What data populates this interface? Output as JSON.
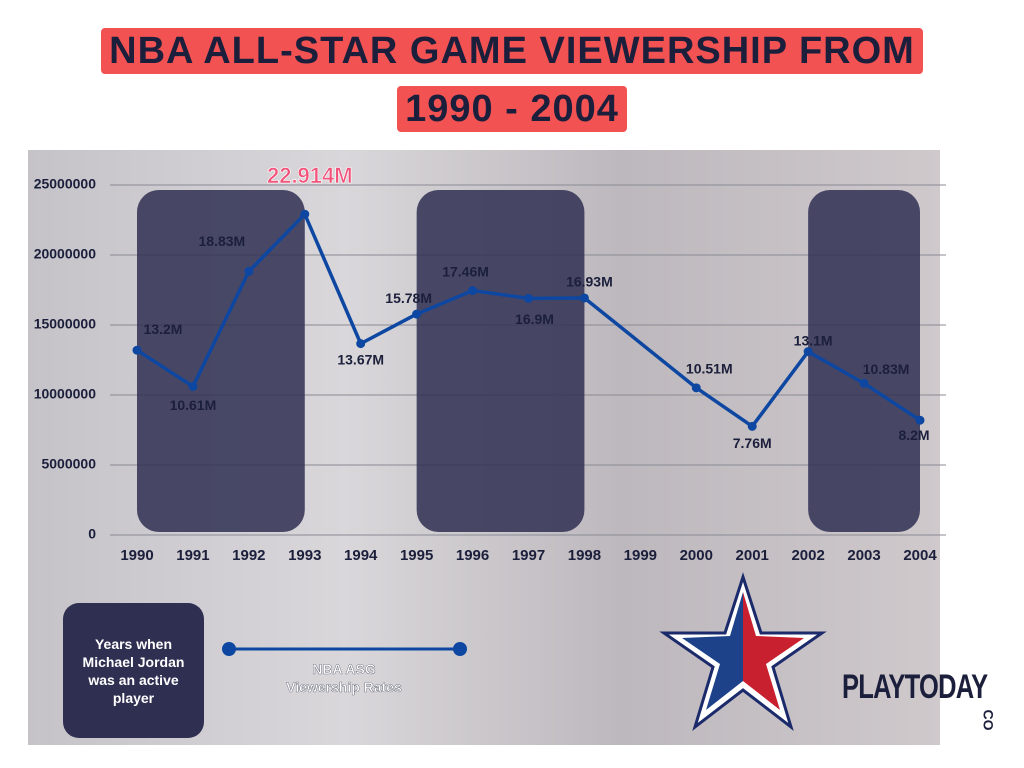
{
  "chart_data": {
    "type": "line",
    "title": "NBA ALL-STAR GAME VIEWERSHIP FROM 1990 - 2004",
    "x": [
      1990,
      1991,
      1992,
      1993,
      1994,
      1995,
      1996,
      1997,
      1998,
      2000,
      2001,
      2002,
      2003,
      2004
    ],
    "series": [
      {
        "name": "NBA ASG Viewership Rates",
        "color": "#0d47a1",
        "values": [
          13200000,
          10610000,
          18830000,
          22914000,
          13670000,
          15780000,
          17460000,
          16900000,
          16930000,
          10510000,
          7760000,
          13100000,
          10830000,
          8200000
        ],
        "value_labels": [
          "13.2M",
          "10.61M",
          "18.83M",
          "22.914M",
          "13.67M",
          "15.78M",
          "17.46M",
          "16.9M",
          "16.93M",
          "10.51M",
          "7.76M",
          "13.1M",
          "10.83M",
          "8.2M"
        ]
      }
    ],
    "xlim": [
      1990,
      2004
    ],
    "xticks": [
      1990,
      1991,
      1992,
      1993,
      1994,
      1995,
      1996,
      1997,
      1998,
      1999,
      2000,
      2001,
      2002,
      2003,
      2004
    ],
    "ylim": [
      0,
      25000000
    ],
    "yticks": [
      0,
      5000000,
      10000000,
      15000000,
      20000000,
      25000000
    ],
    "grid": true,
    "highlight": {
      "name": "Years when Michael Jordan was an active player",
      "color": "#2f2f52",
      "ranges": [
        [
          1990,
          1993
        ],
        [
          1995,
          1998
        ],
        [
          2002,
          2004
        ]
      ]
    },
    "brand": "PLAYTODAY",
    "brand_suffix": "CO"
  }
}
